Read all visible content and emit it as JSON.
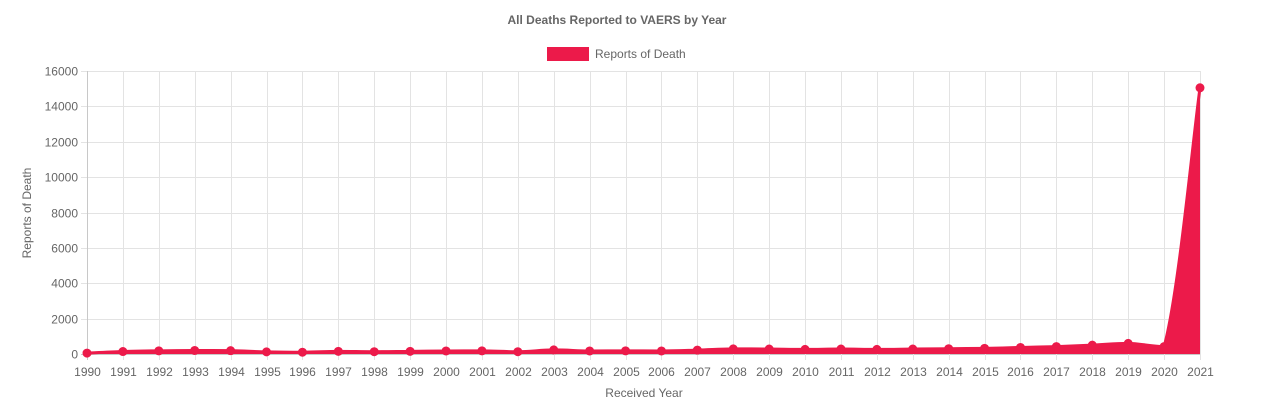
{
  "chart_data": {
    "type": "area",
    "title": "All Deaths Reported to VAERS by Year",
    "xlabel": "Received Year",
    "ylabel": "Reports of Death",
    "ylim": [
      0,
      16000
    ],
    "yticks": [
      0,
      2000,
      4000,
      6000,
      8000,
      10000,
      12000,
      14000,
      16000
    ],
    "grid": true,
    "legend_position": "top-center",
    "categories": [
      "1990",
      "1991",
      "1992",
      "1993",
      "1994",
      "1995",
      "1996",
      "1997",
      "1998",
      "1999",
      "2000",
      "2001",
      "2002",
      "2003",
      "2004",
      "2005",
      "2006",
      "2007",
      "2008",
      "2009",
      "2010",
      "2011",
      "2012",
      "2013",
      "2014",
      "2015",
      "2016",
      "2017",
      "2018",
      "2019",
      "2020",
      "2021"
    ],
    "series": [
      {
        "name": "Reports of Death",
        "color": "#ec1a4a",
        "values": [
          50,
          140,
          180,
          200,
          190,
          120,
          100,
          150,
          130,
          150,
          170,
          180,
          130,
          230,
          170,
          180,
          170,
          220,
          290,
          280,
          260,
          280,
          260,
          280,
          300,
          320,
          370,
          420,
          500,
          600,
          420,
          15050
        ]
      }
    ]
  }
}
